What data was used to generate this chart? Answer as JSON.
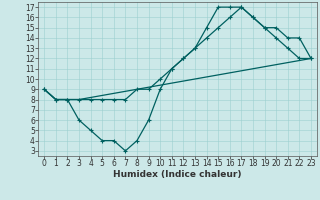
{
  "xlabel": "Humidex (Indice chaleur)",
  "bg_color": "#cce8e8",
  "line_color": "#006060",
  "xlim": [
    -0.5,
    23.5
  ],
  "ylim": [
    2.5,
    17.5
  ],
  "xticks": [
    0,
    1,
    2,
    3,
    4,
    5,
    6,
    7,
    8,
    9,
    10,
    11,
    12,
    13,
    14,
    15,
    16,
    17,
    18,
    19,
    20,
    21,
    22,
    23
  ],
  "yticks": [
    3,
    4,
    5,
    6,
    7,
    8,
    9,
    10,
    11,
    12,
    13,
    14,
    15,
    16,
    17
  ],
  "line1": {
    "x": [
      0,
      1,
      2,
      3,
      23
    ],
    "y": [
      9,
      8,
      8,
      8,
      12
    ]
  },
  "line2": {
    "x": [
      0,
      1,
      2,
      3,
      4,
      5,
      6,
      7,
      8,
      9,
      10,
      11,
      12,
      13,
      14,
      15,
      16,
      17,
      18,
      19,
      20,
      21,
      22,
      23
    ],
    "y": [
      9,
      8,
      8,
      6,
      5,
      4,
      4,
      3,
      4,
      6,
      9,
      11,
      12,
      13,
      15,
      17,
      17,
      17,
      16,
      15,
      14,
      13,
      12,
      12
    ]
  },
  "line3": {
    "x": [
      0,
      1,
      2,
      3,
      4,
      5,
      6,
      7,
      8,
      9,
      10,
      11,
      12,
      13,
      14,
      15,
      16,
      17,
      18,
      19,
      20,
      21,
      22,
      23
    ],
    "y": [
      9,
      8,
      8,
      8,
      8,
      8,
      8,
      8,
      9,
      9,
      10,
      11,
      12,
      13,
      14,
      15,
      16,
      17,
      16,
      15,
      15,
      14,
      14,
      12
    ]
  },
  "tick_fontsize": 5.5,
  "xlabel_fontsize": 6.5
}
